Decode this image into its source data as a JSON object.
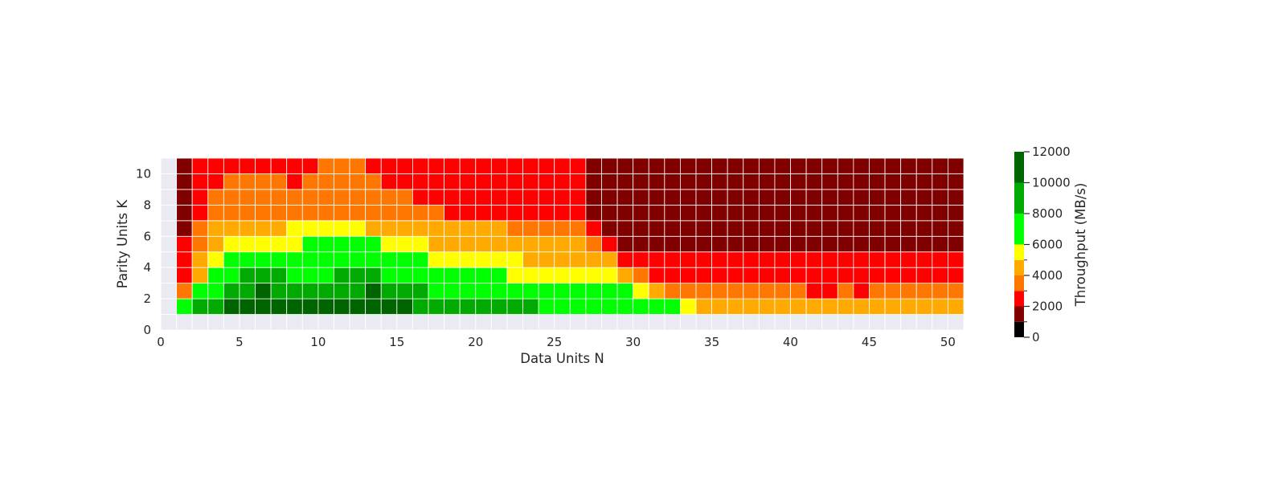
{
  "chart_data": {
    "type": "heatmap",
    "xlabel": "Data Units N",
    "ylabel": "Parity Units K",
    "xlim": [
      0,
      51
    ],
    "ylim": [
      0,
      11
    ],
    "x_ticks": [
      "0",
      "5",
      "10",
      "15",
      "20",
      "25",
      "30",
      "35",
      "40",
      "45",
      "50"
    ],
    "y_ticks": [
      "0",
      "2",
      "4",
      "6",
      "8",
      "10"
    ],
    "grid": true,
    "background_color": "#eaeaf2",
    "colorbar": {
      "label": "Throughput (MB/s)",
      "range": [
        0,
        12000
      ],
      "ticks": [
        "0",
        "2000",
        "4000",
        "6000",
        "8000",
        "10000",
        "12000"
      ],
      "bins": [
        {
          "from": 0,
          "to": 1000,
          "color": "#000000"
        },
        {
          "from": 1000,
          "to": 2000,
          "color": "#800000"
        },
        {
          "from": 2000,
          "to": 3000,
          "color": "#ff0000"
        },
        {
          "from": 3000,
          "to": 4000,
          "color": "#ff7700"
        },
        {
          "from": 4000,
          "to": 5000,
          "color": "#ffaa00"
        },
        {
          "from": 5000,
          "to": 6000,
          "color": "#ffff00"
        },
        {
          "from": 6000,
          "to": 8000,
          "color": "#00ff00"
        },
        {
          "from": 8000,
          "to": 10000,
          "color": "#00aa00"
        },
        {
          "from": 10000,
          "to": 12000,
          "color": "#006400"
        }
      ]
    },
    "n_values": [
      1,
      2,
      3,
      4,
      5,
      6,
      7,
      8,
      9,
      10,
      11,
      12,
      13,
      14,
      15,
      16,
      17,
      18,
      19,
      20,
      21,
      22,
      23,
      24,
      25,
      26,
      27,
      28,
      29,
      30,
      31,
      32,
      33,
      34,
      35,
      36,
      37,
      38,
      39,
      40,
      41,
      42,
      43,
      44,
      45,
      46,
      47,
      48,
      49,
      50
    ],
    "k_values": [
      1,
      2,
      3,
      4,
      5,
      6,
      7,
      8,
      9,
      10
    ],
    "throughput_by_k": [
      [
        6500,
        8500,
        8500,
        10500,
        10500,
        10500,
        10500,
        10500,
        10500,
        10500,
        10500,
        10500,
        10500,
        10500,
        10500,
        8500,
        8500,
        8500,
        8500,
        8500,
        8500,
        8500,
        8500,
        6500,
        6500,
        6500,
        6500,
        6500,
        6500,
        6500,
        6500,
        6500,
        5500,
        4500,
        4500,
        4500,
        4500,
        4500,
        4500,
        4500,
        4500,
        4500,
        4500,
        4500,
        4500,
        4500,
        4500,
        4500,
        4500,
        4500
      ],
      [
        3500,
        6500,
        6500,
        8500,
        8500,
        10500,
        8500,
        8500,
        8500,
        8500,
        8500,
        8500,
        10500,
        8500,
        8500,
        8500,
        6500,
        6500,
        6500,
        6500,
        6500,
        6500,
        6500,
        6500,
        6500,
        6500,
        6500,
        6500,
        6500,
        5500,
        4500,
        3500,
        3500,
        3500,
        3500,
        3500,
        3500,
        3500,
        3500,
        3500,
        2500,
        2500,
        3500,
        2500,
        3500,
        3500,
        3500,
        3500,
        3500,
        3500
      ],
      [
        2500,
        4500,
        6500,
        6500,
        8500,
        8500,
        8500,
        6500,
        6500,
        6500,
        8500,
        8500,
        8500,
        6500,
        6500,
        6500,
        6500,
        6500,
        6500,
        6500,
        6500,
        5500,
        5500,
        5500,
        5500,
        5500,
        5500,
        5500,
        4500,
        3500,
        2500,
        2500,
        2500,
        2500,
        2500,
        2500,
        2500,
        2500,
        2500,
        2500,
        2500,
        2500,
        2500,
        2500,
        2500,
        2500,
        2500,
        2500,
        2500,
        2500
      ],
      [
        2500,
        4500,
        5500,
        6500,
        6500,
        6500,
        6500,
        6500,
        6500,
        6500,
        6500,
        6500,
        6500,
        6500,
        6500,
        6500,
        5500,
        5500,
        5500,
        5500,
        5500,
        5500,
        4500,
        4500,
        4500,
        4500,
        4500,
        4500,
        2500,
        2500,
        2500,
        2500,
        2500,
        2500,
        2500,
        2500,
        2500,
        2500,
        2500,
        2500,
        2500,
        2500,
        2500,
        2500,
        2500,
        2500,
        2500,
        2500,
        2500,
        2500
      ],
      [
        2500,
        3500,
        4500,
        5500,
        5500,
        5500,
        5500,
        5500,
        6500,
        6500,
        6500,
        6500,
        6500,
        5500,
        5500,
        5500,
        4500,
        4500,
        4500,
        4500,
        4500,
        4500,
        4500,
        4500,
        4500,
        4500,
        3500,
        2500,
        1500,
        1500,
        1500,
        1500,
        1500,
        1500,
        1500,
        1500,
        1500,
        1500,
        1500,
        1500,
        1500,
        1500,
        1500,
        1500,
        1500,
        1500,
        1500,
        1500,
        1500,
        1500
      ],
      [
        1500,
        3500,
        4500,
        4500,
        4500,
        4500,
        4500,
        5500,
        5500,
        5500,
        5500,
        5500,
        4500,
        4500,
        4500,
        4500,
        4500,
        4500,
        4500,
        4500,
        4500,
        3500,
        3500,
        3500,
        3500,
        3500,
        2500,
        1500,
        1500,
        1500,
        1500,
        1500,
        1500,
        1500,
        1500,
        1500,
        1500,
        1500,
        1500,
        1500,
        1500,
        1500,
        1500,
        1500,
        1500,
        1500,
        1500,
        1500,
        1500,
        1500
      ],
      [
        1500,
        2500,
        3500,
        3500,
        3500,
        3500,
        3500,
        3500,
        3500,
        3500,
        3500,
        3500,
        3500,
        3500,
        3500,
        3500,
        3500,
        2500,
        2500,
        2500,
        2500,
        2500,
        2500,
        2500,
        2500,
        2500,
        1500,
        1500,
        1500,
        1500,
        1500,
        1500,
        1500,
        1500,
        1500,
        1500,
        1500,
        1500,
        1500,
        1500,
        1500,
        1500,
        1500,
        1500,
        1500,
        1500,
        1500,
        1500,
        1500,
        1500
      ],
      [
        1500,
        2500,
        3500,
        3500,
        3500,
        3500,
        3500,
        3500,
        3500,
        3500,
        3500,
        3500,
        3500,
        3500,
        3500,
        2500,
        2500,
        2500,
        2500,
        2500,
        2500,
        2500,
        2500,
        2500,
        2500,
        2500,
        1500,
        1500,
        1500,
        1500,
        1500,
        1500,
        1500,
        1500,
        1500,
        1500,
        1500,
        1500,
        1500,
        1500,
        1500,
        1500,
        1500,
        1500,
        1500,
        1500,
        1500,
        1500,
        1500,
        1500
      ],
      [
        1500,
        2500,
        2500,
        3500,
        3500,
        3500,
        3500,
        2500,
        3500,
        3500,
        3500,
        3500,
        3500,
        2500,
        2500,
        2500,
        2500,
        2500,
        2500,
        2500,
        2500,
        2500,
        2500,
        2500,
        2500,
        2500,
        1500,
        1500,
        1500,
        1500,
        1500,
        1500,
        1500,
        1500,
        1500,
        1500,
        1500,
        1500,
        1500,
        1500,
        1500,
        1500,
        1500,
        1500,
        1500,
        1500,
        1500,
        1500,
        1500,
        1500
      ],
      [
        1500,
        2500,
        2500,
        2500,
        2500,
        2500,
        2500,
        2500,
        2500,
        3500,
        3500,
        3500,
        2500,
        2500,
        2500,
        2500,
        2500,
        2500,
        2500,
        2500,
        2500,
        2500,
        2500,
        2500,
        2500,
        2500,
        1500,
        1500,
        1500,
        1500,
        1500,
        1500,
        1500,
        1500,
        1500,
        1500,
        1500,
        1500,
        1500,
        1500,
        1500,
        1500,
        1500,
        1500,
        1500,
        1500,
        1500,
        1500,
        1500,
        1500
      ]
    ]
  }
}
